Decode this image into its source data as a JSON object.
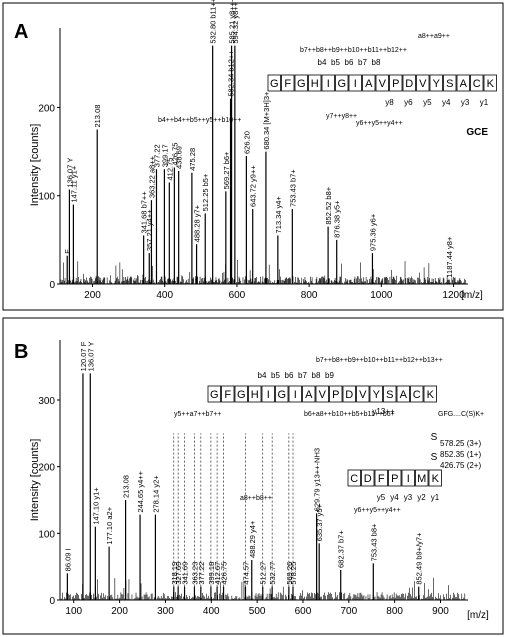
{
  "chart_data": [
    {
      "type": "bar",
      "panel_label": "A",
      "ylabel": "Intensity [counts]",
      "xlabel": "[m/z]",
      "xlim": [
        110,
        1240
      ],
      "ylim": [
        0,
        290
      ],
      "xticks": [
        200,
        400,
        600,
        800,
        1000,
        1200
      ],
      "yticks": [
        0,
        100,
        200
      ],
      "peaks": [
        {
          "x": 130.0,
          "y": 32,
          "label": "F"
        },
        {
          "x": 136.07,
          "y": 107,
          "label": "Y\n136.07"
        },
        {
          "x": 147.11,
          "y": 90,
          "label": "y1+\n147.11"
        },
        {
          "x": 213.08,
          "y": 175,
          "label": "213.08"
        },
        {
          "x": 341.68,
          "y": 55,
          "label": "b7++\n341.68"
        },
        {
          "x": 357.21,
          "y": 35,
          "label": "y4++\n357.21"
        },
        {
          "x": 363.22,
          "y": 95,
          "label": "a8++\n363.22"
        },
        {
          "x": 377.22,
          "y": 130,
          "label": "377.22"
        },
        {
          "x": 399.17,
          "y": 130,
          "label": "399.17"
        },
        {
          "x": 412.75,
          "y": 115,
          "label": "412.75"
        },
        {
          "x": 426.75,
          "y": 132,
          "label": "426.75"
        },
        {
          "x": 438.69,
          "y": 128,
          "label": "438.69"
        },
        {
          "x": 475.28,
          "y": 126,
          "label": "475.28"
        },
        {
          "x": 488.28,
          "y": 45,
          "label": "y7+\n488.28"
        },
        {
          "x": 512.25,
          "y": 80,
          "label": "b5+\n512.25"
        },
        {
          "x": 532.8,
          "y": 270,
          "label": "b11++\n532.80"
        },
        {
          "x": 569.27,
          "y": 105,
          "label": "b6+\n569.27"
        },
        {
          "x": 582.34,
          "y": 210,
          "label": "b12++\n582.34"
        },
        {
          "x": 585.21,
          "y": 270,
          "label": "y8++-H2O\n585.21"
        },
        {
          "x": 594.32,
          "y": 270,
          "label": "y8++\n594.32"
        },
        {
          "x": 626.2,
          "y": 145,
          "label": "626.20"
        },
        {
          "x": 643.72,
          "y": 85,
          "label": "y9++\n643.72"
        },
        {
          "x": 680.34,
          "y": 150,
          "label": "[M+3H]3+\n680.34"
        },
        {
          "x": 713.34,
          "y": 55,
          "label": "y4+\n713.34"
        },
        {
          "x": 753.43,
          "y": 85,
          "label": "b7+\n753.43"
        },
        {
          "x": 852.52,
          "y": 65,
          "label": "b8+\n852.52"
        },
        {
          "x": 876.38,
          "y": 50,
          "label": "y5+\n876.38"
        },
        {
          "x": 975.36,
          "y": 35,
          "label": "y6+\n975.36"
        },
        {
          "x": 1187.44,
          "y": 5,
          "label": "y8+\n1187.44"
        }
      ],
      "sequence": [
        "G",
        "F",
        "G",
        "H",
        "I",
        "G",
        "I",
        "A",
        "V",
        "P",
        "D",
        "V",
        "Y",
        "S",
        "A",
        "C",
        "K"
      ],
      "b_ions": [
        "b4",
        "b5",
        "b6",
        "b7",
        "b8"
      ],
      "y_ions": [
        "y8",
        "y6",
        "y5",
        "y4",
        "y3",
        "y1"
      ],
      "modification": "GCE",
      "multi_ion_labels": [
        "a8++a9++",
        "b7++b8++b9++b10++b11++b12++",
        "b4++b4++b5++y5++b10++",
        "y7++y8++",
        "y6++y5++y4++"
      ]
    },
    {
      "type": "bar",
      "panel_label": "B",
      "ylabel": "Intensity [counts]",
      "xlabel": "[m/z]",
      "xlim": [
        70,
        960
      ],
      "ylim": [
        0,
        390
      ],
      "xticks": [
        100,
        200,
        300,
        400,
        500,
        600,
        700,
        800,
        900
      ],
      "yticks": [
        0,
        100,
        200,
        300
      ],
      "peaks": [
        {
          "x": 86.09,
          "y": 40,
          "label": "I\n86.09"
        },
        {
          "x": 120.07,
          "y": 340,
          "label": "F\n120.07"
        },
        {
          "x": 136.07,
          "y": 340,
          "label": "Y\n136.07"
        },
        {
          "x": 147.1,
          "y": 110,
          "label": "y1+\n147.10"
        },
        {
          "x": 177.1,
          "y": 80,
          "label": "a2+\n177.10"
        },
        {
          "x": 213.08,
          "y": 150,
          "label": "213.08"
        },
        {
          "x": 244.65,
          "y": 128,
          "label": "y4++\n244.65"
        },
        {
          "x": 278.14,
          "y": 128,
          "label": "y2+\n278.14"
        },
        {
          "x": 318.19,
          "y": 20,
          "label": "318.19"
        },
        {
          "x": 327.69,
          "y": 20,
          "label": "327.69"
        },
        {
          "x": 341.69,
          "y": 20,
          "label": "341.69"
        },
        {
          "x": 363.23,
          "y": 20,
          "label": "363.23"
        },
        {
          "x": 377.22,
          "y": 20,
          "label": "377.22"
        },
        {
          "x": 399.18,
          "y": 20,
          "label": "399.18"
        },
        {
          "x": 412.67,
          "y": 20,
          "label": "412.67"
        },
        {
          "x": 426.75,
          "y": 20,
          "label": "426.75"
        },
        {
          "x": 474.57,
          "y": 20,
          "label": "474.57"
        },
        {
          "x": 488.29,
          "y": 60,
          "label": "y4+\n488.29"
        },
        {
          "x": 512.27,
          "y": 20,
          "label": "512.27"
        },
        {
          "x": 532.77,
          "y": 20,
          "label": "532.77"
        },
        {
          "x": 569.26,
          "y": 20,
          "label": "569.26"
        },
        {
          "x": 578.25,
          "y": 20,
          "label": "578.25"
        },
        {
          "x": 629.79,
          "y": 130,
          "label": "y13++-NH3\n629.79"
        },
        {
          "x": 635.37,
          "y": 85,
          "label": "y5+\n635.37"
        },
        {
          "x": 682.37,
          "y": 45,
          "label": "b7+\n682.37"
        },
        {
          "x": 753.43,
          "y": 55,
          "label": "b8+\n753.43"
        },
        {
          "x": 852.49,
          "y": 20,
          "label": "b9+/y7+\n852.49"
        }
      ],
      "sequence": [
        "G",
        "F",
        "G",
        "H",
        "I",
        "G",
        "I",
        "A",
        "V",
        "P",
        "D",
        "V",
        "Y",
        "S",
        "A",
        "C",
        "K"
      ],
      "b_ions": [
        "b4",
        "b5",
        "b6",
        "b7",
        "b8",
        "b9"
      ],
      "y13_label": "y13++",
      "linked_sequence": [
        "C",
        "D",
        "F",
        "P",
        "I",
        "M",
        "K"
      ],
      "linked_y_ions": [
        "y5",
        "y4",
        "y3",
        "y2",
        "y1"
      ],
      "linked_y_multi": "y6++y5++y4++",
      "disulfide_atoms": [
        "S",
        "S"
      ],
      "charge_annotations": [
        "578.25 (3+)",
        "852.35 (1+)",
        "426.75 (2+)"
      ],
      "group_labels": [
        "b7++b8++b9++b10++b11++b12++b13++",
        "y5++a7++b7++",
        "b6+a8++b10++b5+b11++b6+",
        "GFG....C(S)K+",
        "a8++b8++"
      ]
    }
  ]
}
